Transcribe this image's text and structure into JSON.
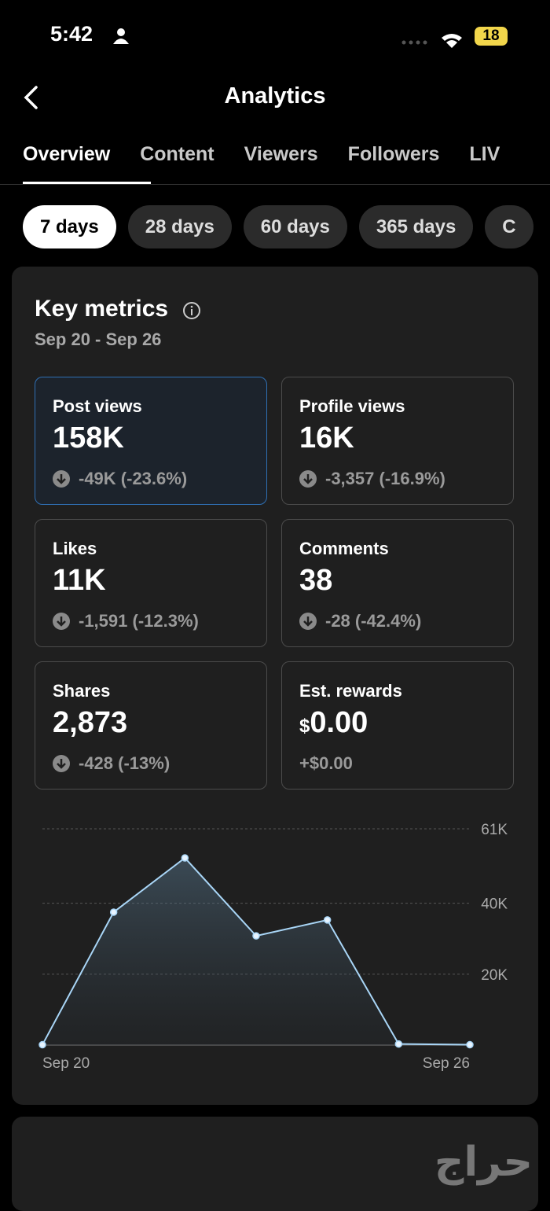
{
  "status_bar": {
    "time": "5:42",
    "battery": "18"
  },
  "header": {
    "title": "Analytics"
  },
  "tabs": [
    "Overview",
    "Content",
    "Viewers",
    "Followers",
    "LIV"
  ],
  "ranges": [
    "7 days",
    "28 days",
    "60 days",
    "365 days",
    "C"
  ],
  "key_metrics": {
    "title": "Key metrics",
    "dates": "Sep 20 - Sep 26",
    "cards": [
      {
        "label": "Post views",
        "value": "158K",
        "change": "-49K (-23.6%)"
      },
      {
        "label": "Profile views",
        "value": "16K",
        "change": "-3,357 (-16.9%)"
      },
      {
        "label": "Likes",
        "value": "11K",
        "change": "-1,591 (-12.3%)"
      },
      {
        "label": "Comments",
        "value": "38",
        "change": "-28 (-42.4%)"
      },
      {
        "label": "Shares",
        "value": "2,873",
        "change": "-428 (-13%)"
      },
      {
        "label": "Est. rewards",
        "currency": "$",
        "value": "0.00",
        "change": "+$0.00"
      }
    ]
  },
  "chart_data": {
    "type": "area",
    "categories": [
      "Sep 20",
      null,
      null,
      null,
      null,
      null,
      "Sep 26"
    ],
    "values": [
      100,
      37500,
      52800,
      30800,
      35300,
      300,
      100
    ],
    "color": "#a9d6f7",
    "ylim": [
      0,
      61000
    ],
    "yticks": [
      {
        "value": 20000,
        "label": "20K"
      },
      {
        "value": 40000,
        "label": "40K"
      },
      {
        "value": 61000,
        "label": "61K"
      }
    ],
    "grid": true
  },
  "watermark": "حراج"
}
